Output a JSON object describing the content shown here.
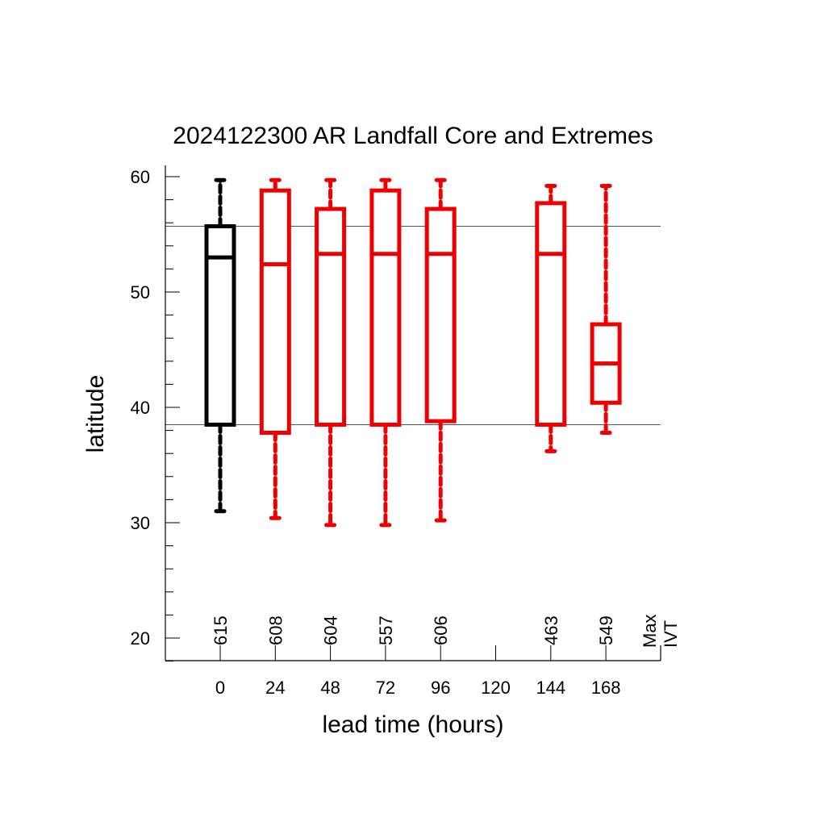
{
  "chart_data": {
    "type": "box",
    "title": "2024122300 AR Landfall Core and Extremes",
    "xlabel": "lead time (hours)",
    "ylabel": "latitude",
    "ylim": [
      18,
      61
    ],
    "y_ticks": [
      "20",
      "30",
      "40",
      "50",
      "60"
    ],
    "x_ticks": [
      "0",
      "24",
      "48",
      "72",
      "96",
      "120",
      "144",
      "168"
    ],
    "max_ivt_label": [
      "Max",
      "IVT"
    ],
    "reference_lines": [
      55.7,
      38.5
    ],
    "colors": {
      "analysis": "#000000",
      "forecast": "#ee0000"
    },
    "boxes": [
      {
        "lead": 0,
        "count": "615",
        "min": 31.0,
        "q1": 38.5,
        "median": 53.0,
        "q3": 55.7,
        "max": 59.7,
        "color": "#000000"
      },
      {
        "lead": 24,
        "count": "608",
        "min": 30.4,
        "q1": 37.8,
        "median": 52.4,
        "q3": 58.8,
        "max": 59.7,
        "color": "#ee0000"
      },
      {
        "lead": 48,
        "count": "604",
        "min": 29.8,
        "q1": 38.5,
        "median": 53.3,
        "q3": 57.2,
        "max": 59.7,
        "color": "#ee0000"
      },
      {
        "lead": 72,
        "count": "557",
        "min": 29.8,
        "q1": 38.5,
        "median": 53.3,
        "q3": 58.8,
        "max": 59.7,
        "color": "#ee0000"
      },
      {
        "lead": 96,
        "count": "606",
        "min": 30.2,
        "q1": 38.8,
        "median": 53.3,
        "q3": 57.2,
        "max": 59.7,
        "color": "#ee0000"
      },
      {
        "lead": 144,
        "count": "463",
        "min": 36.2,
        "q1": 38.5,
        "median": 53.3,
        "q3": 57.7,
        "max": 59.2,
        "color": "#ee0000"
      },
      {
        "lead": 168,
        "count": "549",
        "min": 37.8,
        "q1": 40.4,
        "median": 43.8,
        "q3": 47.2,
        "max": 59.2,
        "color": "#ee0000"
      }
    ]
  }
}
